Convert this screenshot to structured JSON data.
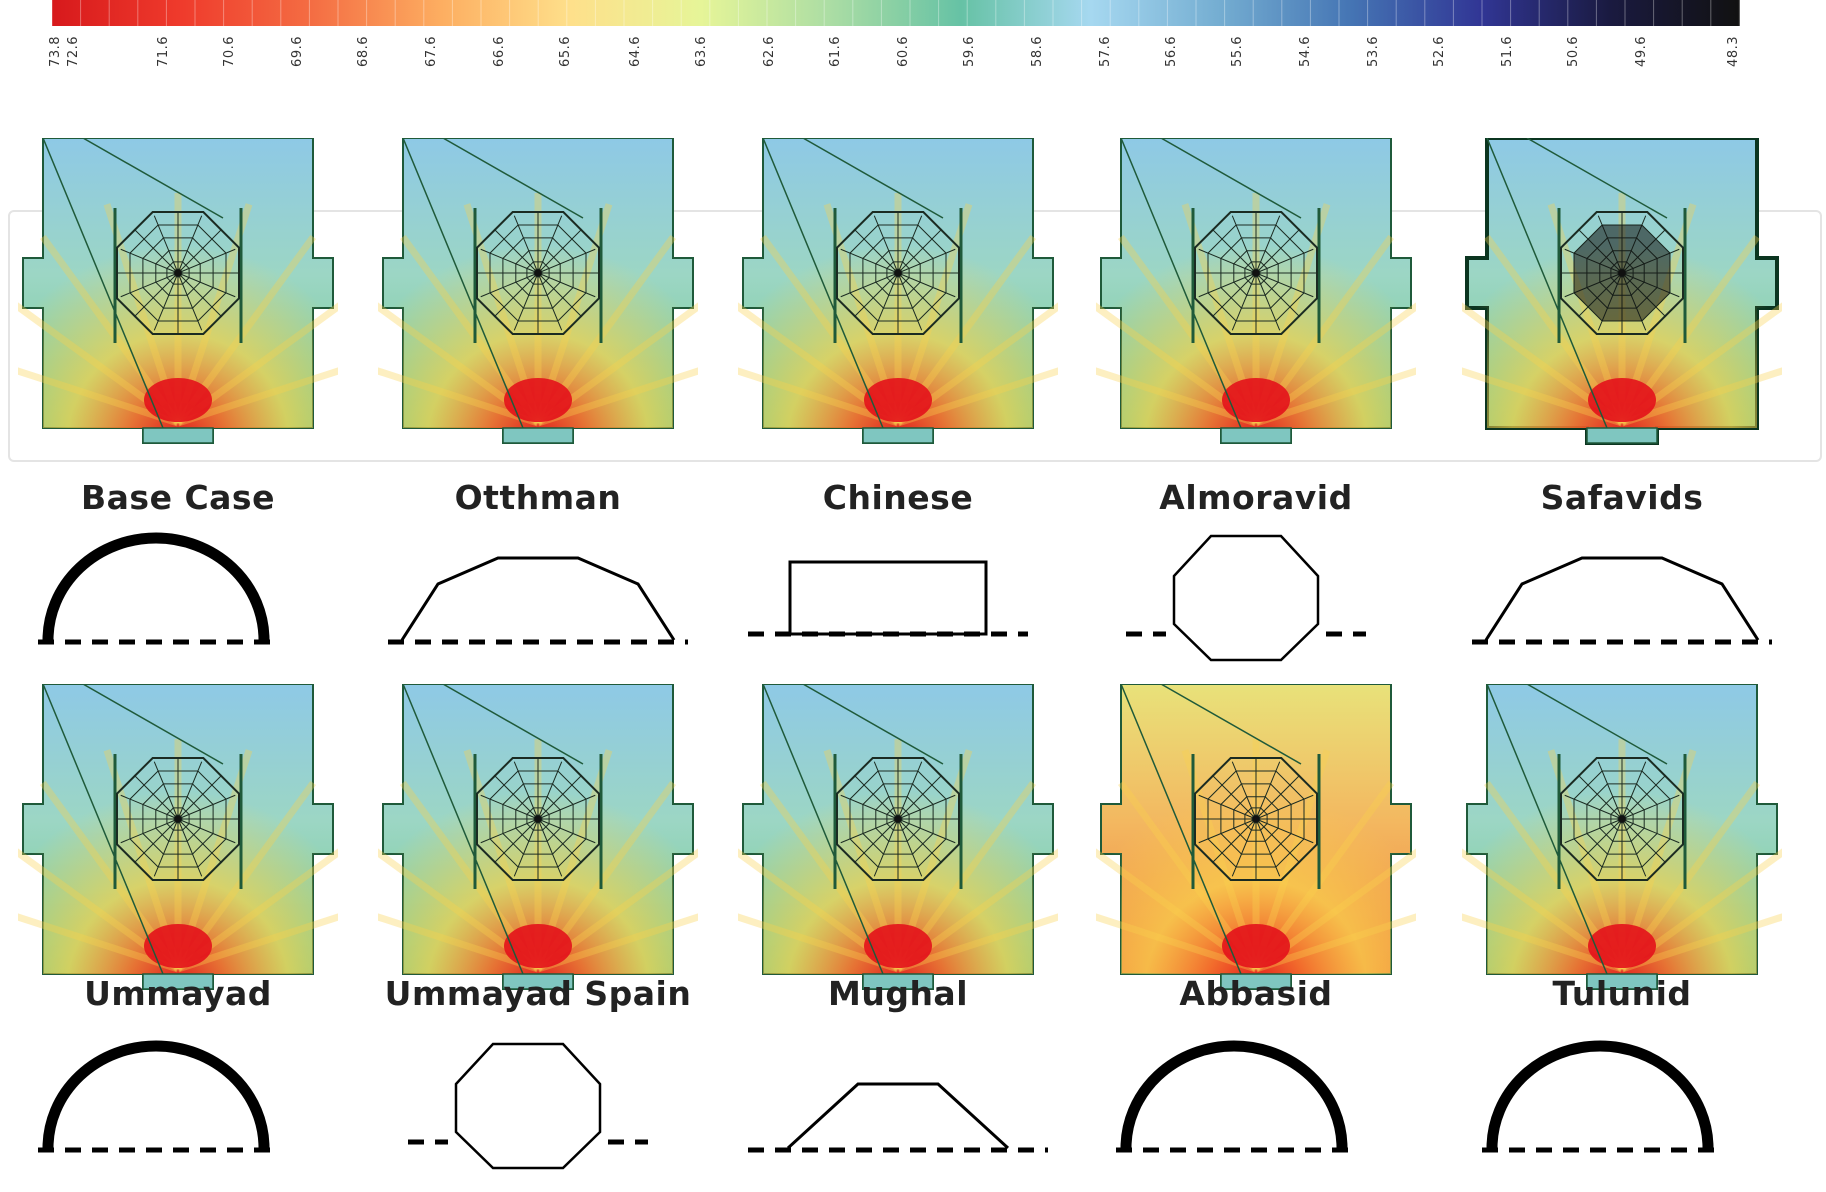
{
  "colorbar": {
    "ticks": [
      "73.8",
      "72.6",
      "71.6",
      "70.6",
      "69.6",
      "68.6",
      "67.6",
      "66.6",
      "65.6",
      "64.6",
      "63.6",
      "62.6",
      "61.6",
      "60.6",
      "59.6",
      "58.6",
      "57.6",
      "56.6",
      "55.6",
      "54.6",
      "53.6",
      "52.6",
      "51.6",
      "50.6",
      "49.6",
      "48.3"
    ],
    "stops": [
      "#d7191c",
      "#ef3b2c",
      "#f46d43",
      "#fdae61",
      "#fee08b",
      "#e6f598",
      "#abdda4",
      "#66c2a5",
      "#a6d8f0",
      "#74add1",
      "#4575b4",
      "#313695",
      "#1a1a40",
      "#111111"
    ]
  },
  "colors": {
    "hot": "#e3121b",
    "warm": "#f9d24c",
    "mid": "#6fc98a",
    "cool": "#8ec9e6",
    "line": "#1f5a3a",
    "profile": "#000000"
  },
  "cases": [
    {
      "label": "Base Case",
      "profile": "dome",
      "tone": "normal"
    },
    {
      "label": "Otthman",
      "profile": "trapezoid-wide",
      "tone": "normal"
    },
    {
      "label": "Chinese",
      "profile": "rectangle",
      "tone": "normal"
    },
    {
      "label": "Almoravid",
      "profile": "octagon",
      "tone": "normal"
    },
    {
      "label": "Safavids",
      "profile": "trapezoid-wide",
      "tone": "dark"
    },
    {
      "label": "Ummayad",
      "profile": "dome",
      "tone": "normal"
    },
    {
      "label": "Ummayad Spain",
      "profile": "octagon",
      "tone": "normal"
    },
    {
      "label": "Mughal",
      "profile": "trapezoid-narrow",
      "tone": "normal"
    },
    {
      "label": "Abbasid",
      "profile": "dome",
      "tone": "warm"
    },
    {
      "label": "Tulunid",
      "profile": "dome",
      "tone": "normal"
    }
  ]
}
